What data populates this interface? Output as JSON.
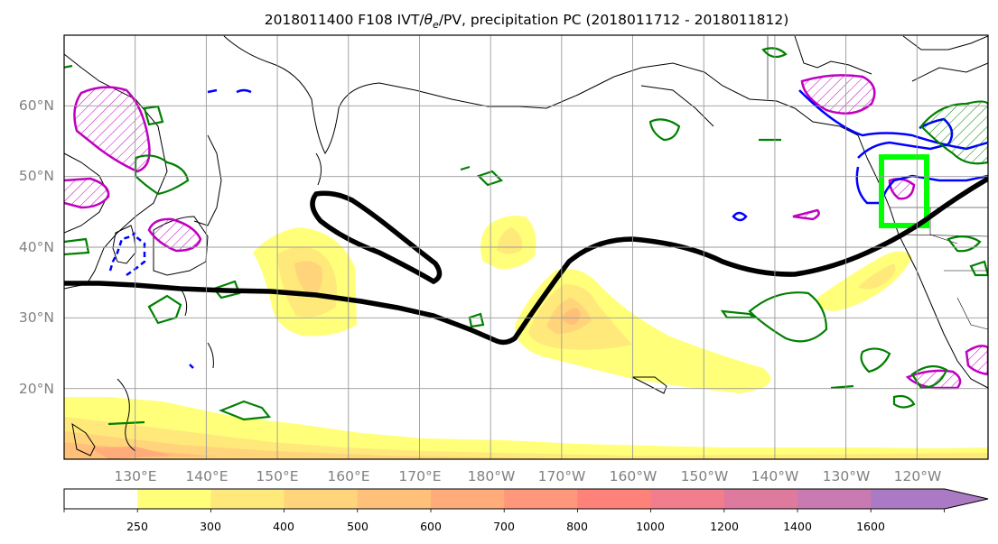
{
  "title_text": "2018011400 F108 IVT/θe/PV, precipitation PC (2018011712 - 2018011812)",
  "title_parts": {
    "pre": "2018011400 F108 IVT/",
    "theta": "θ",
    "sub": "e",
    "post": "/PV, precipitation PC (2018011712 - 2018011812)"
  },
  "map": {
    "lon_labels": [
      "130°E",
      "140°E",
      "150°E",
      "160°E",
      "170°E",
      "180°W",
      "170°W",
      "160°W",
      "150°W",
      "140°W",
      "130°W",
      "120°W"
    ],
    "lat_labels": [
      "60°N",
      "50°N",
      "40°N",
      "30°N",
      "20°N"
    ],
    "grid": true,
    "lon_range": [
      120,
      250
    ],
    "lat_range": [
      10,
      70
    ]
  },
  "colorbar": {
    "tick_labels": [
      "250",
      "300",
      "400",
      "500",
      "600",
      "700",
      "800",
      "1000",
      "1200",
      "1400",
      "1600"
    ],
    "colors": [
      "#ffff7a",
      "#ffe97a",
      "#ffd47a",
      "#ffc07a",
      "#ffab7a",
      "#ff977a",
      "#ff827a",
      "#f27d8c",
      "#dd7a9e",
      "#c97ab0",
      "#ab7ac4"
    ],
    "extend": "max"
  },
  "colors": {
    "precip_green": "#008000",
    "pv_magenta": "#c000c0",
    "theta_blue": "#0000ff",
    "box_green": "#00ff00",
    "ivt_black": "#000000"
  }
}
